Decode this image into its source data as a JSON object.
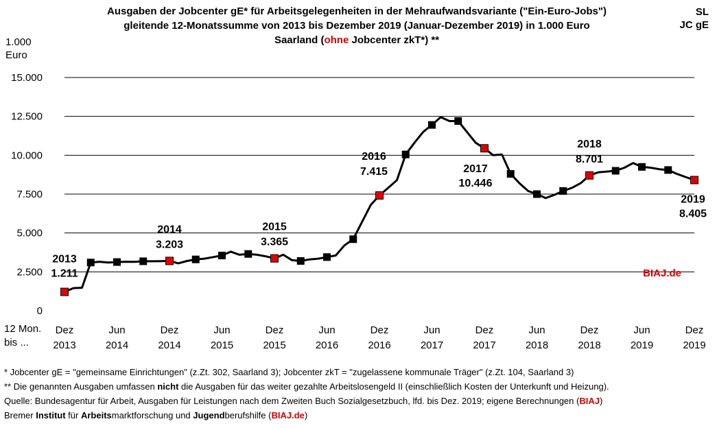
{
  "title": {
    "line1": "Ausgaben der Jobcenter gE* für Arbeitsgelegenheiten in der Mehraufwandsvariante (\"Ein-Euro-Jobs\")",
    "line2": "gleitende 12-Monatssumme von 2013 bis Dezember 2019 (Januar-Dezember 2019) in 1.000 Euro",
    "line3_prefix": "Saarland (",
    "line3_highlight": "ohne",
    "line3_suffix": " Jobcenter zkT*) **"
  },
  "corner": {
    "line1": "SL",
    "line2": "JC gE"
  },
  "y_unit": {
    "line1": "1.000",
    "line2": "Euro"
  },
  "x_unit": {
    "line1": "12 Mon.",
    "line2": "bis ..."
  },
  "watermark": "BIAJ.de",
  "colors": {
    "line": "#000000",
    "highlight": "#e00000",
    "marker": "#000000",
    "grid": "#000000",
    "accent_text": "#d40000"
  },
  "chart_data": {
    "type": "line",
    "ylim": [
      0,
      15000
    ],
    "yticks": [
      0,
      2500,
      5000,
      7500,
      10000,
      12500,
      15000
    ],
    "ytick_labels": [
      "0",
      "2.500",
      "5.000",
      "7.500",
      "10.000",
      "12.500",
      "15.000"
    ],
    "x_ticks": [
      {
        "idx": 0,
        "month": "Dez",
        "year": "2013"
      },
      {
        "idx": 6,
        "month": "Jun",
        "year": "2014"
      },
      {
        "idx": 12,
        "month": "Dez",
        "year": "2014"
      },
      {
        "idx": 18,
        "month": "Jun",
        "year": "2015"
      },
      {
        "idx": 24,
        "month": "Dez",
        "year": "2015"
      },
      {
        "idx": 30,
        "month": "Jun",
        "year": "2016"
      },
      {
        "idx": 36,
        "month": "Dez",
        "year": "2016"
      },
      {
        "idx": 42,
        "month": "Jun",
        "year": "2017"
      },
      {
        "idx": 48,
        "month": "Dez",
        "year": "2017"
      },
      {
        "idx": 54,
        "month": "Jun",
        "year": "2018"
      },
      {
        "idx": 60,
        "month": "Dez",
        "year": "2018"
      },
      {
        "idx": 66,
        "month": "Jun",
        "year": "2019"
      },
      {
        "idx": 72,
        "month": "Dez",
        "year": "2019"
      }
    ],
    "series": [
      {
        "values": [
          1211,
          1450,
          1480,
          3100,
          3150,
          3100,
          3130,
          3150,
          3140,
          3180,
          3180,
          3190,
          3203,
          3050,
          3200,
          3300,
          3350,
          3450,
          3550,
          3800,
          3600,
          3650,
          3600,
          3500,
          3365,
          3600,
          3250,
          3200,
          3300,
          3350,
          3450,
          3550,
          4200,
          4600,
          5700,
          6800,
          7415,
          7900,
          8400,
          10050,
          10800,
          11500,
          11950,
          12450,
          12200,
          12200,
          11500,
          10800,
          10446,
          10000,
          10050,
          8800,
          8200,
          7700,
          7500,
          7250,
          7450,
          7700,
          7900,
          8200,
          8701,
          8900,
          8950,
          9000,
          9200,
          9500,
          9250,
          9200,
          9100,
          9050,
          8800,
          8600,
          8405
        ],
        "marker_indices": [
          3,
          6,
          9,
          15,
          18,
          21,
          27,
          30,
          33,
          39,
          42,
          45,
          51,
          54,
          57,
          63,
          66,
          69
        ],
        "highlight_indices": [
          0,
          12,
          24,
          36,
          48,
          60,
          72
        ]
      }
    ],
    "annotations": [
      {
        "idx": 0,
        "year": "2013",
        "value": "1.211"
      },
      {
        "idx": 12,
        "year": "2014",
        "value": "3.203"
      },
      {
        "idx": 24,
        "year": "2015",
        "value": "3.365"
      },
      {
        "idx": 36,
        "year": "2016",
        "value": "7.415"
      },
      {
        "idx": 48,
        "year": "2017",
        "value": "10.446"
      },
      {
        "idx": 60,
        "year": "2018",
        "value": "8.701"
      },
      {
        "idx": 72,
        "year": "2019",
        "value": "8.405"
      }
    ]
  },
  "notes": {
    "n1": "*   Jobcenter gE = \"gemeinsame Einrichtungen\" (z.Zt. 302, Saarland 3); Jobcenter zkT = \"zugelassene kommunale Träger\" (z.Zt. 104, Saarland 3)",
    "n2_a": "** Die genannten Ausgaben umfassen ",
    "n2_b": "nicht",
    "n2_c": " die Ausgaben für das weiter gezahlte Arbeitslosengeld II (einschließlich Kosten der Unterkunft und Heizung).",
    "n3_a": "Quelle: Bundesagentur für Arbeit, Ausgaben für Leistungen nach dem Zweiten Buch Sozialgesetzbuch, lfd. bis Dez. 2019; eigene Berechnungen (",
    "n3_b": "BIAJ",
    "n3_c": ")",
    "n4_a": "Bremer ",
    "n4_b": "Institut",
    "n4_c": " für ",
    "n4_d": "Arbeits",
    "n4_e": "marktforschung und ",
    "n4_f": "Jugend",
    "n4_g": "berufshilfe (",
    "n4_h": "BIAJ.de",
    "n4_i": ")"
  }
}
